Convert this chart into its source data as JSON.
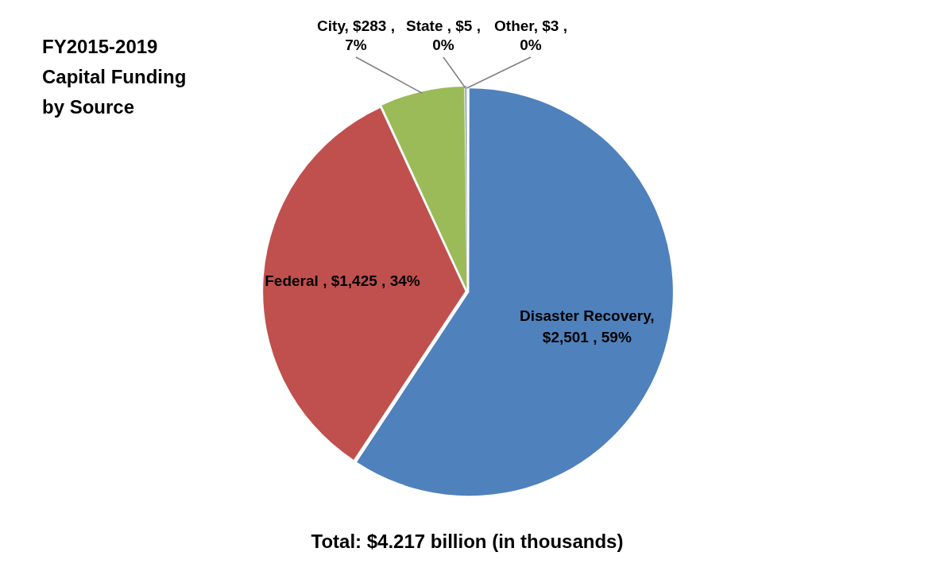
{
  "chart_data": {
    "type": "pie",
    "title": "FY2015-2019 Capital Funding by Source",
    "categories": [
      "Disaster Recovery",
      "Federal",
      "City",
      "State",
      "Other"
    ],
    "values": [
      2501,
      1425,
      283,
      5,
      3
    ],
    "value_labels": [
      ", $2,501 , 59%",
      " , $1,425 , 34%",
      ", $283 , 7%",
      " , $5 , 0%",
      ", $3 , 0%"
    ],
    "colors": [
      "#4f81bd",
      "#c0504d",
      "#9bbb59",
      "#8064a2",
      "#4bacc6"
    ],
    "legend": false,
    "annotations": [
      "Total: $4.217 billion (in thousands)"
    ]
  }
}
